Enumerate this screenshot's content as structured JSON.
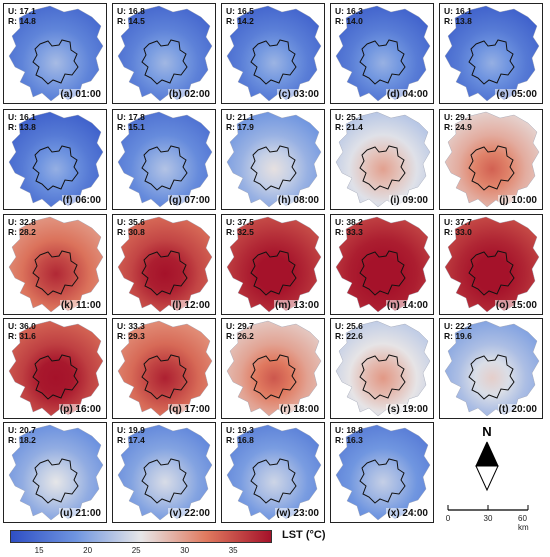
{
  "panels": [
    {
      "label": "(a) 01:00",
      "U": "U: 17.1",
      "R": "R: 14.8",
      "temp": 17.1
    },
    {
      "label": "(b) 02:00",
      "U": "U: 16.8",
      "R": "R: 14.5",
      "temp": 16.8
    },
    {
      "label": "(c) 03:00",
      "U": "U: 16.5",
      "R": "R: 14.2",
      "temp": 16.5
    },
    {
      "label": "(d) 04:00",
      "U": "U: 16.3",
      "R": "R: 14.0",
      "temp": 16.3
    },
    {
      "label": "(e) 05:00",
      "U": "U: 16.1",
      "R": "R: 13.8",
      "temp": 16.1
    },
    {
      "label": "(f) 06:00",
      "U": "U: 16.1",
      "R": "R: 13.8",
      "temp": 16.1
    },
    {
      "label": "(g) 07:00",
      "U": "U: 17.8",
      "R": "R: 15.1",
      "temp": 17.8
    },
    {
      "label": "(h) 08:00",
      "U": "U: 21.1",
      "R": "R: 17.9",
      "temp": 21.1
    },
    {
      "label": "(i) 09:00",
      "U": "U: 25.1",
      "R": "R: 21.4",
      "temp": 25.1
    },
    {
      "label": "(j) 10:00",
      "U": "U: 29.1",
      "R": "R: 24.9",
      "temp": 29.1
    },
    {
      "label": "(k) 11:00",
      "U": "U: 32.8",
      "R": "R: 28.2",
      "temp": 32.8
    },
    {
      "label": "(l) 12:00",
      "U": "U: 35.6",
      "R": "R: 30.8",
      "temp": 35.6
    },
    {
      "label": "(m) 13:00",
      "U": "U: 37.5",
      "R": "R: 32.5",
      "temp": 37.5
    },
    {
      "label": "(n) 14:00",
      "U": "U: 38.2",
      "R": "R: 33.3",
      "temp": 38.2
    },
    {
      "label": "(o) 15:00",
      "U": "U: 37.7",
      "R": "R: 33.0",
      "temp": 37.7
    },
    {
      "label": "(p) 16:00",
      "U": "U: 36.0",
      "R": "R: 31.6",
      "temp": 36.0
    },
    {
      "label": "(q) 17:00",
      "U": "U: 33.3",
      "R": "R: 29.3",
      "temp": 33.3
    },
    {
      "label": "(r) 18:00",
      "U": "U: 29.7",
      "R": "R: 26.2",
      "temp": 29.7
    },
    {
      "label": "(s) 19:00",
      "U": "U: 25.6",
      "R": "R: 22.6",
      "temp": 25.6
    },
    {
      "label": "(t) 20:00",
      "U": "U: 22.2",
      "R": "R: 19.6",
      "temp": 22.2
    },
    {
      "label": "(u) 21:00",
      "U": "U: 20.7",
      "R": "R: 18.2",
      "temp": 20.7
    },
    {
      "label": "(v) 22:00",
      "U": "U: 19.9",
      "R": "R: 17.4",
      "temp": 19.9
    },
    {
      "label": "(w) 23:00",
      "U": "U: 19.3",
      "R": "R: 16.8",
      "temp": 19.3
    },
    {
      "label": "(x) 24:00",
      "U": "U: 18.8",
      "R": "R: 16.3",
      "temp": 18.8
    }
  ],
  "north_label": "N",
  "scalebar": {
    "ticks": [
      "0",
      "30",
      "60 km"
    ]
  },
  "colorbar": {
    "title": "LST (°C)",
    "ticks": [
      "15",
      "20",
      "25",
      "30",
      "35"
    ],
    "tick_values": [
      15,
      20,
      25,
      30,
      35
    ],
    "range": [
      12,
      39
    ],
    "colors": [
      "#2f4fc4",
      "#6f95e0",
      "#e6e6e8",
      "#e07a5f",
      "#a5122a"
    ]
  }
}
